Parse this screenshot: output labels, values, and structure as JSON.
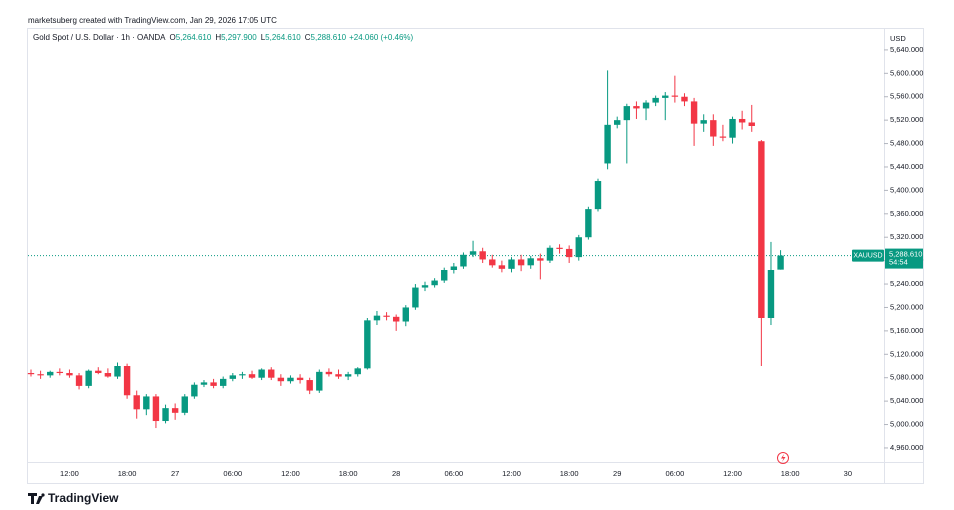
{
  "header": "marketsuberg created with TradingView.com, Jan 29, 2026 17:05 UTC",
  "legend": {
    "name": "Gold Spot / U.S. Dollar · 1h · OANDA",
    "items": [
      {
        "key": "O",
        "value": "5,264.610"
      },
      {
        "key": "H",
        "value": "5,297.900"
      },
      {
        "key": "L",
        "value": "5,264.610"
      },
      {
        "key": "C",
        "value": "5,288.610"
      }
    ],
    "change": "+24.060 (+0.46%)"
  },
  "price_badge": {
    "symbol": "XAUUSD",
    "price": "5,288.610",
    "countdown": "54:54"
  },
  "logo": "TradingView",
  "chart_data": {
    "type": "candlestick",
    "y_axis_label": "USD",
    "up_color": "#089981",
    "down_color": "#f23645",
    "ylim": [
      4936,
      5674
    ],
    "yticks": [
      {
        "value": 4960,
        "label": "4,960.000"
      },
      {
        "value": 5000,
        "label": "5,000.000"
      },
      {
        "value": 5040,
        "label": "5,040.000"
      },
      {
        "value": 5080,
        "label": "5,080.000"
      },
      {
        "value": 5120,
        "label": "5,120.000"
      },
      {
        "value": 5160,
        "label": "5,160.000"
      },
      {
        "value": 5200,
        "label": "5,200.000"
      },
      {
        "value": 5240,
        "label": "5,240.000"
      },
      {
        "value": 5280,
        "label": "5,280.000"
      },
      {
        "value": 5320,
        "label": "5,320.000"
      },
      {
        "value": 5360,
        "label": "5,360.000"
      },
      {
        "value": 5400,
        "label": "5,400.000"
      },
      {
        "value": 5440,
        "label": "5,440.000"
      },
      {
        "value": 5480,
        "label": "5,480.000"
      },
      {
        "value": 5520,
        "label": "5,520.000"
      },
      {
        "value": 5560,
        "label": "5,560.000"
      },
      {
        "value": 5600,
        "label": "5,600.000"
      },
      {
        "value": 5640,
        "label": "5,640.000"
      }
    ],
    "categories": [
      null,
      null,
      null,
      null,
      "12:00",
      null,
      null,
      null,
      null,
      null,
      "18:00",
      null,
      null,
      null,
      null,
      "27",
      null,
      null,
      null,
      null,
      null,
      "06:00",
      null,
      null,
      null,
      null,
      null,
      "12:00",
      null,
      null,
      null,
      null,
      null,
      "18:00",
      null,
      null,
      null,
      null,
      "28",
      null,
      null,
      null,
      null,
      null,
      "06:00",
      null,
      null,
      null,
      null,
      null,
      "12:00",
      null,
      null,
      null,
      null,
      null,
      "18:00",
      null,
      null,
      null,
      null,
      "29",
      null,
      null,
      null,
      null,
      null,
      "06:00",
      null,
      null,
      null,
      null,
      null,
      "12:00",
      null,
      null,
      null,
      null,
      null,
      "18:00",
      null,
      null,
      null,
      null,
      null,
      "30"
    ],
    "open": [
      5088,
      5086,
      5084,
      5090,
      5088,
      5084,
      5066,
      5092,
      5088,
      5082,
      5100,
      5050,
      5026,
      5048,
      5006,
      5028,
      5020,
      5048,
      5068,
      5072,
      5066,
      5078,
      5084,
      5086,
      5080,
      5094,
      5080,
      5074,
      5080,
      5076,
      5058,
      5090,
      5086,
      5082,
      5086,
      5096,
      5178,
      5186,
      5184,
      5176,
      5200,
      5234,
      5238,
      5246,
      5264,
      5270,
      5290,
      5296,
      5282,
      5272,
      5266,
      5282,
      5272,
      5284,
      5280,
      5302,
      5300,
      5286,
      5320,
      5368,
      5446,
      5512,
      5520,
      5544,
      5540,
      5550,
      5558,
      5562,
      5560,
      5552,
      5514,
      5520,
      5492,
      5490,
      5522,
      5516,
      5484,
      5182,
      5264.61,
      null,
      null,
      null,
      null,
      null,
      null,
      null
    ],
    "high": [
      5094,
      5092,
      5092,
      5096,
      5094,
      5088,
      5094,
      5098,
      5096,
      5106,
      5104,
      5058,
      5052,
      5052,
      5034,
      5036,
      5052,
      5072,
      5076,
      5078,
      5082,
      5088,
      5090,
      5092,
      5096,
      5098,
      5086,
      5084,
      5086,
      5080,
      5094,
      5096,
      5094,
      5090,
      5098,
      5182,
      5194,
      5192,
      5188,
      5204,
      5240,
      5244,
      5250,
      5268,
      5276,
      5294,
      5314,
      5302,
      5290,
      5280,
      5286,
      5290,
      5288,
      5292,
      5306,
      5308,
      5306,
      5324,
      5372,
      5420,
      5605,
      5526,
      5548,
      5552,
      5554,
      5562,
      5568,
      5596,
      5566,
      5558,
      5530,
      5530,
      5512,
      5526,
      5536,
      5546,
      5486,
      5312,
      5297.9,
      null,
      null,
      null,
      null,
      null,
      null,
      null
    ],
    "low": [
      5082,
      5078,
      5080,
      5084,
      5080,
      5060,
      5062,
      5086,
      5080,
      5078,
      5044,
      5010,
      5016,
      4994,
      5002,
      5008,
      5016,
      5044,
      5064,
      5062,
      5062,
      5074,
      5078,
      5078,
      5076,
      5076,
      5066,
      5070,
      5070,
      5052,
      5054,
      5082,
      5078,
      5076,
      5082,
      5094,
      5170,
      5178,
      5160,
      5168,
      5196,
      5228,
      5234,
      5242,
      5258,
      5266,
      5286,
      5276,
      5268,
      5260,
      5260,
      5262,
      5266,
      5248,
      5276,
      5292,
      5276,
      5280,
      5316,
      5364,
      5436,
      5506,
      5446,
      5522,
      5520,
      5544,
      5520,
      5550,
      5544,
      5476,
      5500,
      5476,
      5484,
      5480,
      5504,
      5500,
      5100,
      5170,
      5264.61,
      null,
      null,
      null,
      null,
      null,
      null,
      null
    ],
    "close": [
      5086,
      5084,
      5090,
      5088,
      5084,
      5066,
      5092,
      5088,
      5082,
      5100,
      5050,
      5026,
      5048,
      5006,
      5028,
      5020,
      5048,
      5068,
      5072,
      5066,
      5078,
      5084,
      5086,
      5080,
      5094,
      5080,
      5074,
      5080,
      5076,
      5058,
      5090,
      5086,
      5082,
      5086,
      5096,
      5178,
      5186,
      5184,
      5176,
      5200,
      5234,
      5238,
      5246,
      5264,
      5270,
      5290,
      5296,
      5282,
      5272,
      5266,
      5282,
      5272,
      5284,
      5280,
      5302,
      5300,
      5286,
      5320,
      5368,
      5416,
      5512,
      5520,
      5544,
      5540,
      5550,
      5558,
      5562,
      5560,
      5552,
      5514,
      5520,
      5492,
      5490,
      5522,
      5516,
      5510,
      5182,
      5264,
      5288.61,
      null,
      null,
      null,
      null,
      null,
      null,
      null
    ]
  }
}
